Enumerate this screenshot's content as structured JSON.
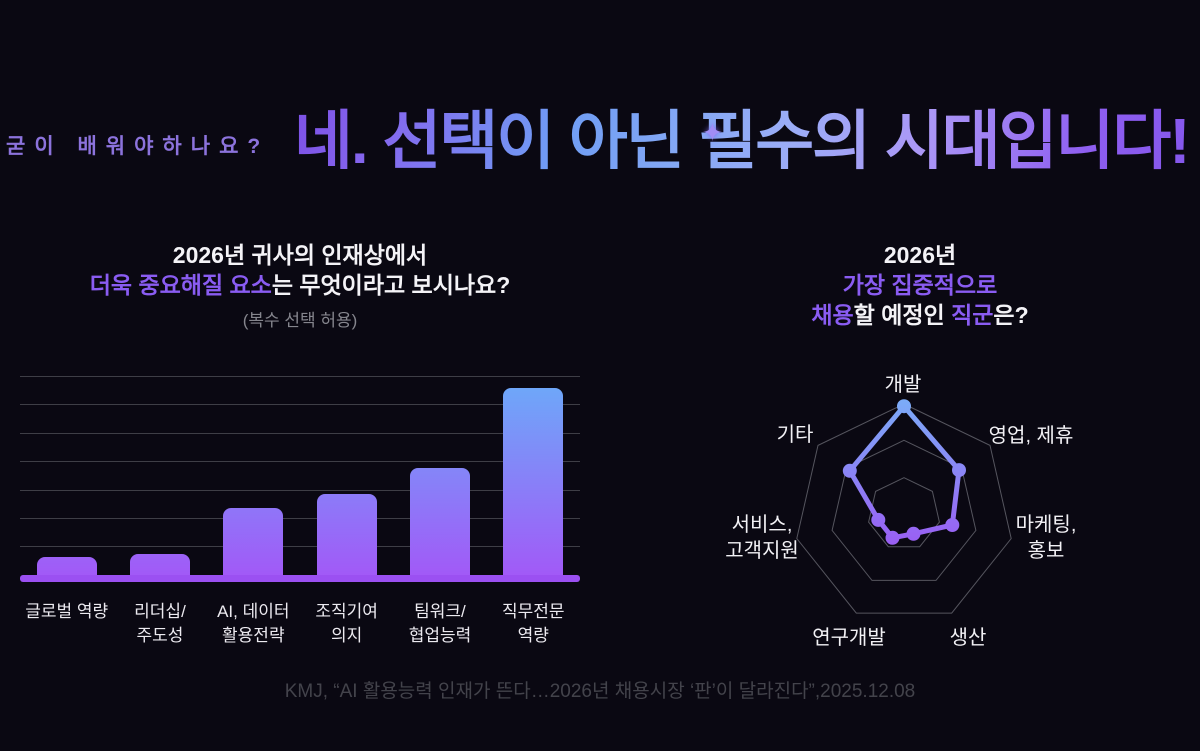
{
  "title_area": {
    "kicker": "굳이 배워야하나요?",
    "headline": "네. 선택이 아닌 필수의 시대입니다!",
    "sparkle_icon": "✦"
  },
  "left_panel": {
    "title_line1": "2026년 귀사의 인재상에서",
    "title_line2_highlight": "더욱 중요해질 요소",
    "title_line2_rest": "는 무엇이라고 보시나요?",
    "subtitle": "(복수 선택 허용)"
  },
  "right_panel": {
    "title_line1": "2026년",
    "title_line2_highlight": "가장 집중적으로",
    "title_line3_part1_highlight": "채용",
    "title_line3_part2": "할 예정인 ",
    "title_line3_part3_highlight": "직군",
    "title_line3_part4": "은?"
  },
  "footer": {
    "citation": "KMJ, “AI 활용능력 인재가 뜬다…2026년 채용시장 ‘판’이 달라진다”,2025.12.08"
  },
  "colors": {
    "background": "#0a0812",
    "accent_purple": "#8a5cf2",
    "kicker_purple": "#8c73dc",
    "bar_gradient_top": "#6ea7f9",
    "bar_gradient_bottom": "#a259f7",
    "axis_purple": "#9b50f2",
    "gridline_gray": "#3e3e46",
    "radar_grid_gray": "#6f6f78",
    "radar_line_top": "#7cabf8",
    "radar_line_bottom": "#9a5ef3",
    "muted_gray": "#85858d",
    "footer_gray": "#43434b"
  },
  "chart_data": [
    {
      "type": "bar",
      "title": "2026년 귀사의 인재상에서 더욱 중요해질 요소는 무엇이라고 보시나요?",
      "subtitle": "(복수 선택 허용)",
      "categories": [
        "글로벌 역량",
        "리더십/주도성",
        "AI, 데이터 활용전략",
        "조직기여 의지",
        "팀워크/협업능력",
        "직무전문 역량"
      ],
      "categories_lines": [
        [
          "글로벌 역량"
        ],
        [
          "리더십/",
          "주도성"
        ],
        [
          "AI, 데이터",
          "활용전략"
        ],
        [
          "조직기여",
          "의지"
        ],
        [
          "팀워크/",
          "협업능력"
        ],
        [
          "직무전문",
          "역량"
        ]
      ],
      "values": [
        7,
        8,
        24,
        29,
        38,
        66
      ],
      "xlabel": "",
      "ylabel": "",
      "ylim": [
        0,
        70
      ],
      "gridline_count": 7,
      "value_labels_shown": false,
      "legend": "none"
    },
    {
      "type": "radar",
      "title": "2026년 가장 집중적으로 채용할 예정인 직군은?",
      "categories": [
        "개발",
        "영업, 제휴",
        "마케팅, 홍보",
        "생산",
        "연구개발",
        "서비스, 고객지원",
        "기타"
      ],
      "categories_lines": [
        [
          "개발"
        ],
        [
          "영업, 제휴"
        ],
        [
          "마케팅,",
          "홍보"
        ],
        [
          "생산"
        ],
        [
          "연구개발"
        ],
        [
          "서비스,",
          "고객지원"
        ],
        [
          "기타"
        ]
      ],
      "values": [
        98,
        64,
        45,
        20,
        24,
        24,
        63
      ],
      "max": 100,
      "rings": [
        33,
        67,
        100
      ],
      "legend": "none"
    }
  ]
}
